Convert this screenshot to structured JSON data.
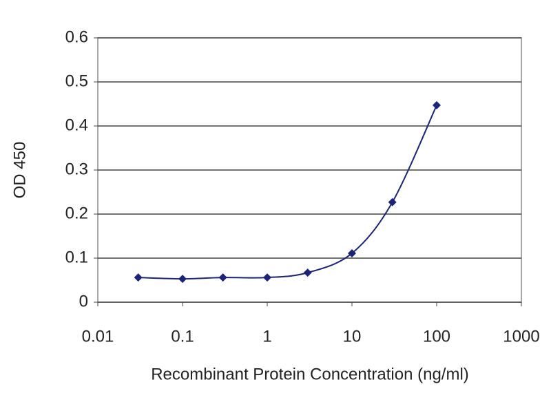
{
  "chart_data": {
    "type": "line",
    "x_label": "Recombinant Protein Concentration (ng/ml)",
    "y_label": "OD 450",
    "x": [
      0.03,
      0.1,
      0.3,
      1,
      3,
      10,
      30,
      100
    ],
    "series": [
      {
        "color": "#1a237e",
        "values": [
          0.056,
          0.053,
          0.056,
          0.056,
          0.067,
          0.111,
          0.227,
          0.447
        ]
      }
    ],
    "xscale": "log",
    "xlim": [
      0.01,
      1000
    ],
    "xticks": [
      0.01,
      0.1,
      1,
      10,
      100,
      1000
    ],
    "ylim": [
      0,
      0.6
    ],
    "yticks": [
      0,
      0.1,
      0.2,
      0.3,
      0.4,
      0.5,
      0.6
    ],
    "grid": true
  }
}
